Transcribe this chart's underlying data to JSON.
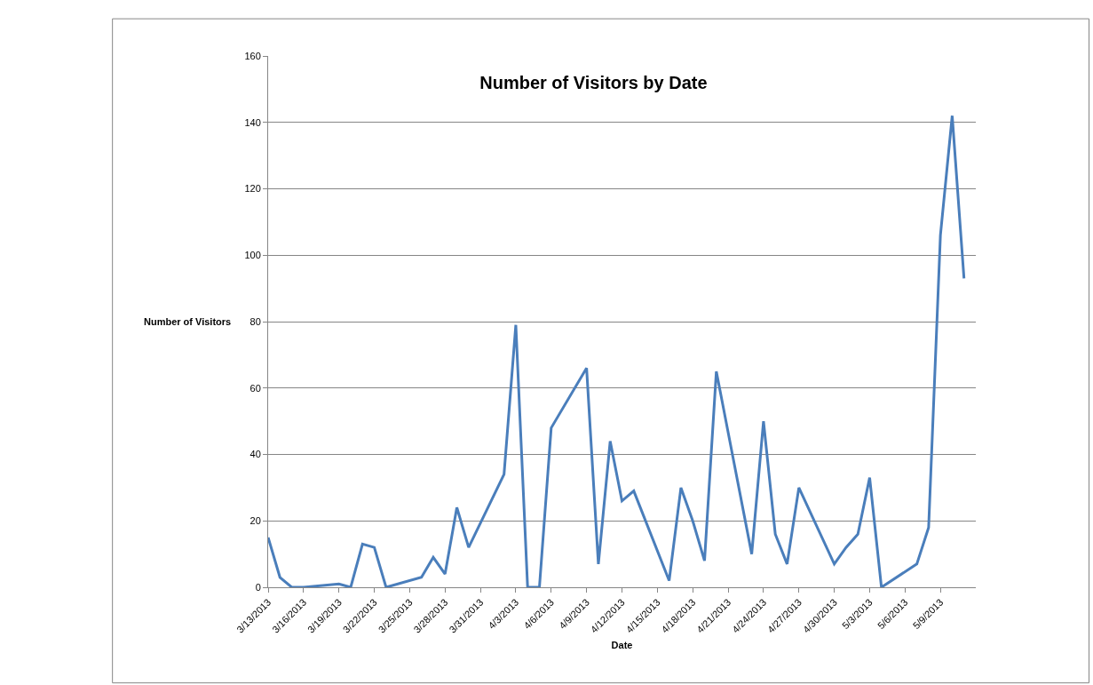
{
  "chart_data": {
    "type": "line",
    "title": "Number of Visitors by Date",
    "xlabel": "Date",
    "ylabel": "Number of Visitors",
    "x": [
      "2013-03-13",
      "2013-03-14",
      "2013-03-15",
      "2013-03-16",
      "2013-03-19",
      "2013-03-20",
      "2013-03-21",
      "2013-03-22",
      "2013-03-23",
      "2013-03-26",
      "2013-03-27",
      "2013-03-28",
      "2013-03-29",
      "2013-03-30",
      "2013-04-02",
      "2013-04-03",
      "2013-04-04",
      "2013-04-05",
      "2013-04-06",
      "2013-04-09",
      "2013-04-10",
      "2013-04-11",
      "2013-04-12",
      "2013-04-13",
      "2013-04-16",
      "2013-04-17",
      "2013-04-18",
      "2013-04-19",
      "2013-04-20",
      "2013-04-23",
      "2013-04-24",
      "2013-04-25",
      "2013-04-26",
      "2013-04-27",
      "2013-04-30",
      "2013-05-01",
      "2013-05-02",
      "2013-05-03",
      "2013-05-04",
      "2013-05-07",
      "2013-05-08",
      "2013-05-09",
      "2013-05-10",
      "2013-05-11"
    ],
    "series": [
      {
        "color": "#4a7ebb",
        "values": [
          15,
          3,
          0,
          0,
          1,
          0,
          13,
          12,
          0,
          3,
          9,
          4,
          24,
          12,
          34,
          79,
          0,
          0,
          48,
          66,
          7,
          44,
          26,
          29,
          2,
          30,
          20,
          8,
          65,
          10,
          50,
          16,
          7,
          30,
          7,
          12,
          16,
          33,
          0,
          7,
          18,
          106,
          142,
          93
        ]
      }
    ],
    "xlim": [
      "2013-03-13",
      "2013-05-12"
    ],
    "xticks": [
      {
        "value": "2013-03-13",
        "label": "3/13/2013"
      },
      {
        "value": "2013-03-16",
        "label": "3/16/2013"
      },
      {
        "value": "2013-03-19",
        "label": "3/19/2013"
      },
      {
        "value": "2013-03-22",
        "label": "3/22/2013"
      },
      {
        "value": "2013-03-25",
        "label": "3/25/2013"
      },
      {
        "value": "2013-03-28",
        "label": "3/28/2013"
      },
      {
        "value": "2013-03-31",
        "label": "3/31/2013"
      },
      {
        "value": "2013-04-03",
        "label": "4/3/2013"
      },
      {
        "value": "2013-04-06",
        "label": "4/6/2013"
      },
      {
        "value": "2013-04-09",
        "label": "4/9/2013"
      },
      {
        "value": "2013-04-12",
        "label": "4/12/2013"
      },
      {
        "value": "2013-04-15",
        "label": "4/15/2013"
      },
      {
        "value": "2013-04-18",
        "label": "4/18/2013"
      },
      {
        "value": "2013-04-21",
        "label": "4/21/2013"
      },
      {
        "value": "2013-04-24",
        "label": "4/24/2013"
      },
      {
        "value": "2013-04-27",
        "label": "4/27/2013"
      },
      {
        "value": "2013-04-30",
        "label": "4/30/2013"
      },
      {
        "value": "2013-05-03",
        "label": "5/3/2013"
      },
      {
        "value": "2013-05-06",
        "label": "5/6/2013"
      },
      {
        "value": "2013-05-09",
        "label": "5/9/2013"
      }
    ],
    "ylim": [
      0,
      160
    ],
    "yticks": [
      0,
      20,
      40,
      60,
      80,
      100,
      120,
      140,
      160
    ],
    "grid": "y",
    "marker": "none",
    "line_style": "solid"
  }
}
